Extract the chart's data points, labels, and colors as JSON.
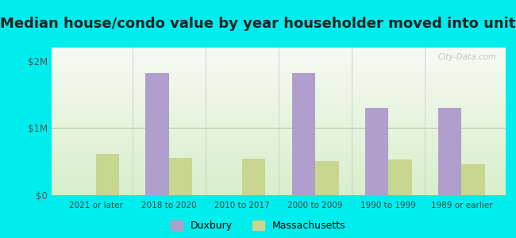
{
  "title": "Median house/condo value by year householder moved into unit",
  "categories": [
    "2021 or later",
    "2018 to 2020",
    "2010 to 2017",
    "2000 to 2009",
    "1990 to 1999",
    "1989 or earlier"
  ],
  "duxbury_values": [
    0,
    1820000,
    0,
    1820000,
    1300000,
    1300000
  ],
  "massachusetts_values": [
    620000,
    560000,
    550000,
    510000,
    530000,
    460000
  ],
  "duxbury_color": "#b09fcc",
  "massachusetts_color": "#c8d690",
  "ylabel_ticks": [
    "$0",
    "$1M",
    "$2M"
  ],
  "ytick_values": [
    0,
    1000000,
    2000000
  ],
  "ylim": [
    0,
    2200000
  ],
  "outer_background": "#00eded",
  "title_fontsize": 13,
  "bar_width": 0.32,
  "watermark": "City-Data.com"
}
